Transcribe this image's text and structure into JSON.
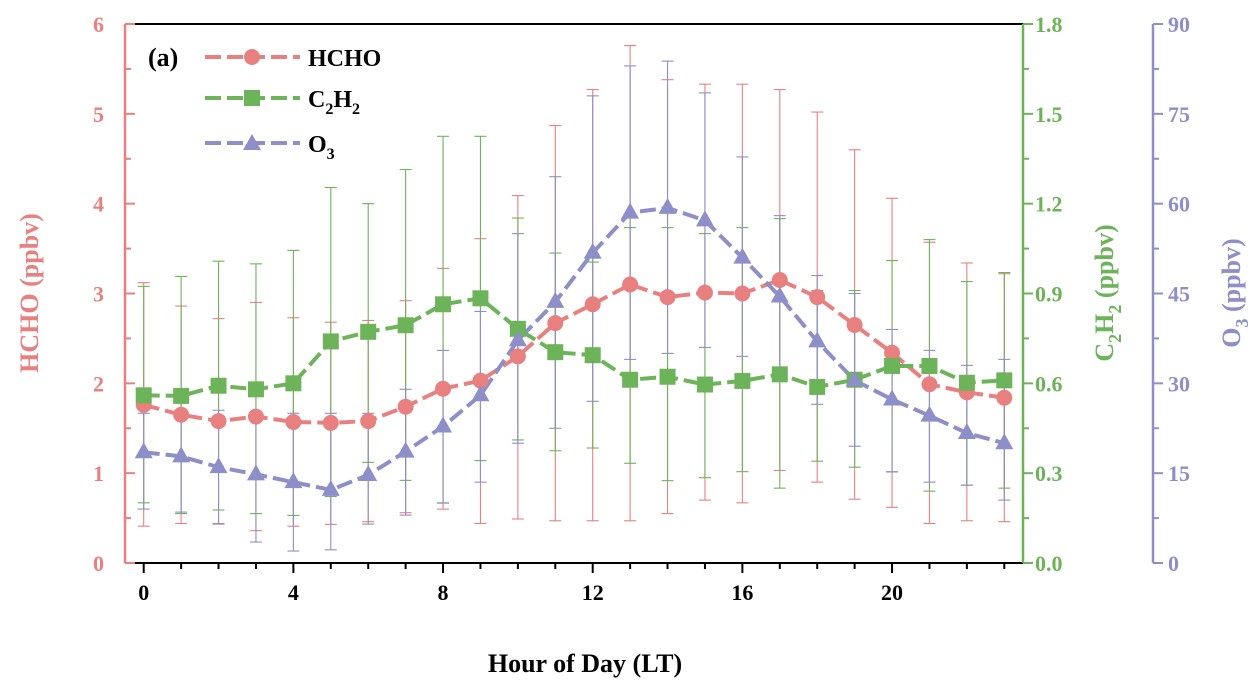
{
  "chart_data": {
    "type": "line",
    "panel_label": "(a)",
    "xlabel": "Hour of Day (LT)",
    "x": [
      0,
      1,
      2,
      3,
      4,
      5,
      6,
      7,
      8,
      9,
      10,
      11,
      12,
      13,
      14,
      15,
      16,
      17,
      18,
      19,
      20,
      21,
      22,
      23
    ],
    "x_ticks": [
      "0",
      "4",
      "8",
      "12",
      "16",
      "20"
    ],
    "xlim": [
      -0.5,
      23.5
    ],
    "grid": false,
    "legend_position": "top-left",
    "axes": {
      "left": {
        "label": "HCHO (ppbv)",
        "ylim": [
          0,
          6
        ],
        "ticks": [
          "0",
          "1",
          "2",
          "3",
          "4",
          "5",
          "6"
        ],
        "color": "#E88080"
      },
      "right1": {
        "label_main": "C",
        "label_sub1": "2",
        "label_mid": "H",
        "label_sub2": "2",
        "label_unit": " (ppbv)",
        "ylim": [
          0.0,
          1.8
        ],
        "ticks": [
          "0.0",
          "0.3",
          "0.6",
          "0.9",
          "1.2",
          "1.5",
          "1.8"
        ],
        "color": "#6DB35A"
      },
      "right2": {
        "label_main": "O",
        "label_sub": "3",
        "label_unit": " (ppbv)",
        "ylim": [
          0,
          90
        ],
        "ticks": [
          "0",
          "15",
          "30",
          "45",
          "60",
          "75",
          "90"
        ],
        "color": "#8E8EC8"
      }
    },
    "series": [
      {
        "name": "HCHO",
        "axis": "left",
        "marker": "circle",
        "color": "#E88080",
        "values": [
          1.76,
          1.65,
          1.58,
          1.63,
          1.57,
          1.56,
          1.58,
          1.74,
          1.94,
          2.03,
          2.3,
          2.67,
          2.88,
          3.1,
          2.96,
          3.01,
          3.0,
          3.15,
          2.96,
          2.65,
          2.34,
          1.99,
          1.9,
          1.84
        ],
        "err_high": [
          3.12,
          2.86,
          2.72,
          2.9,
          2.73,
          2.68,
          2.7,
          2.92,
          3.28,
          3.61,
          4.09,
          4.87,
          5.27,
          5.76,
          5.38,
          5.33,
          5.33,
          5.27,
          5.02,
          4.6,
          4.06,
          3.57,
          3.34,
          3.22
        ],
        "err_low": [
          0.41,
          0.44,
          0.44,
          0.36,
          0.41,
          0.43,
          0.46,
          0.56,
          0.6,
          0.44,
          0.49,
          0.47,
          0.47,
          0.47,
          0.55,
          0.7,
          0.67,
          1.03,
          0.9,
          0.71,
          0.62,
          0.44,
          0.47,
          0.46
        ]
      },
      {
        "name": "C2H2",
        "name_main": "C",
        "name_sub1": "2",
        "name_mid": "H",
        "name_sub2": "2",
        "axis": "right1",
        "marker": "square",
        "color": "#6DB35A",
        "values": [
          0.56,
          0.558,
          0.592,
          0.58,
          0.6,
          0.74,
          0.772,
          0.794,
          0.864,
          0.884,
          0.782,
          0.704,
          0.694,
          0.612,
          0.622,
          0.596,
          0.608,
          0.63,
          0.588,
          0.612,
          0.658,
          0.658,
          0.602,
          0.61
        ],
        "err_high": [
          0.924,
          0.957,
          1.008,
          0.999,
          1.044,
          1.254,
          1.2,
          1.314,
          1.425,
          1.425,
          1.152,
          1.035,
          1.005,
          1.12,
          1.12,
          1.1,
          1.12,
          1.15,
          0.91,
          0.91,
          1.01,
          1.08,
          0.94,
          0.97
        ],
        "err_low": [
          0.201,
          0.165,
          0.177,
          0.165,
          0.159,
          0.222,
          0.336,
          0.276,
          0.201,
          0.342,
          0.411,
          0.375,
          0.384,
          0.333,
          0.275,
          0.285,
          0.305,
          0.25,
          0.34,
          0.32,
          0.305,
          0.24,
          0.26,
          0.25
        ]
      },
      {
        "name": "O3",
        "name_main": "O",
        "name_sub": "3",
        "axis": "right2",
        "marker": "triangle",
        "color": "#8E8EC8",
        "values": [
          18.5,
          17.8,
          16.0,
          14.8,
          13.5,
          12.2,
          14.7,
          18.6,
          22.8,
          28.0,
          37.2,
          43.6,
          51.8,
          58.5,
          59.3,
          57.2,
          51.0,
          44.5,
          37.0,
          30.5,
          27.3,
          24.6,
          21.7,
          20.0
        ],
        "err_high": [
          25.0,
          25.5,
          25.5,
          25.0,
          25.0,
          25.0,
          25.0,
          29.0,
          35.5,
          42.0,
          55.0,
          64.5,
          78.0,
          83.0,
          83.8,
          78.5,
          67.8,
          58.0,
          48.0,
          45.0,
          39.0,
          35.5,
          33.0,
          34.0
        ],
        "err_low": [
          9.0,
          8.5,
          6.5,
          3.5,
          2.0,
          2.2,
          6.5,
          8.0,
          10.0,
          13.5,
          20.0,
          22.5,
          27.0,
          34.0,
          35.0,
          36.0,
          34.5,
          31.0,
          26.5,
          19.5,
          15.2,
          13.5,
          13.0,
          10.5
        ]
      }
    ]
  }
}
